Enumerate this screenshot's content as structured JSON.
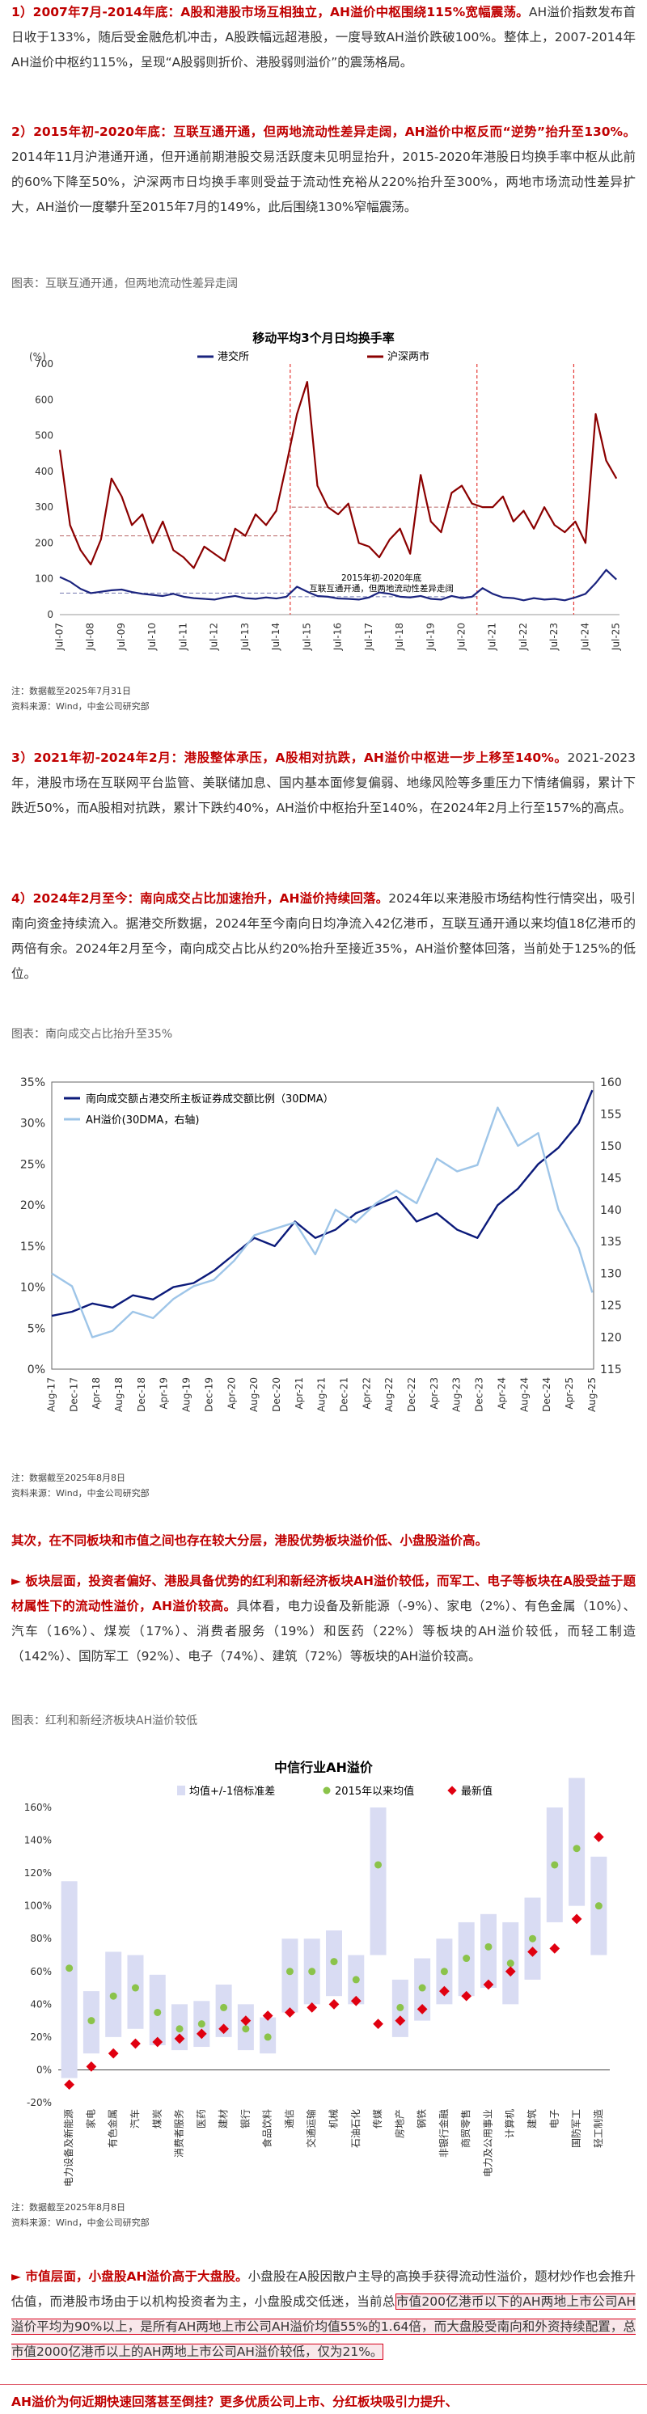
{
  "para1": {
    "title": "1）2007年7月-2014年底：A股和港股市场互相独立，AH溢价中枢围绕115%宽幅震荡。",
    "body": "AH溢价指数发布首日收于133%，随后受金融危机冲击，A股跌幅远超港股，一度导致AH溢价跌破100%。整体上，2007-2014年AH溢价中枢约115%，呈现“A股弱则折价、港股弱则溢价”的震荡格局。"
  },
  "para2": {
    "title": "2）2015年初-2020年底：互联互通开通，但两地流动性差异走阔，AH溢价中枢反而“逆势”抬升至130%。",
    "body": "2014年11月沪港通开通，但开通前期港股交易活跃度未见明显抬升，2015-2020年港股日均换手率中枢从此前的60%下降至50%，沪深两市日均换手率则受益于流动性充裕从220%抬升至300%，两地市场流动性差异扩大，AH溢价一度攀升至2015年7月的149%，此后围绕130%窄幅震荡。"
  },
  "cap1": "图表：互联互通开通，但两地流动性差异走阔",
  "chart1_src": [
    "注：数据截至2025年7月31日",
    "资料来源：Wind，中金公司研究部"
  ],
  "para3": {
    "title": "3）2021年初-2024年2月：港股整体承压，A股相对抗跌，AH溢价中枢进一步上移至140%。",
    "body": "2021-2023年，港股市场在互联网平台监管、美联储加息、国内基本面修复偏弱、地缘风险等多重压力下情绪偏弱，累计下跌近50%，而A股相对抗跌，累计下跌约40%，AH溢价中枢抬升至140%，在2024年2月上行至157%的高点。"
  },
  "para4": {
    "title": "4）2024年2月至今：南向成交占比加速抬升，AH溢价持续回落。",
    "body": "2024年以来港股市场结构性行情突出，吸引南向资金持续流入。据港交所数据，2024年至今南向日均净流入42亿港币，互联互通开通以来均值18亿港币的两倍有余。2024年2月至今，南向成交占比从约20%抬升至接近35%，AH溢价整体回落，当前处于125%的低位。"
  },
  "cap2": "图表：南向成交占比抬升至35%",
  "chart2_src": [
    "注：数据截至2025年8月8日",
    "资料来源：Wind，中金公司研究部"
  ],
  "para5": "其次，在不同板块和市值之间也存在较大分层，港股优势板块溢价低、小盘股溢价高。",
  "para6": {
    "title": "► 板块层面，投资者偏好、港股具备优势的红利和新经济板块AH溢价较低，而军工、电子等板块在A股受益于题材属性下的流动性溢价，AH溢价较高。",
    "body": "具体看，电力设备及新能源（-9%）、家电（2%）、有色金属（10%）、汽车（16%）、煤炭（17%）、消费者服务（19%）和医药（22%）等板块的AH溢价较低，而轻工制造（142%）、国防军工（92%）、电子（74%）、建筑（72%）等板块的AH溢价较高。"
  },
  "cap3": "图表：红利和新经济板块AH溢价较低",
  "chart3_src": [
    "注：数据截至2025年8月8日",
    "资料来源：Wind，中金公司研究部"
  ],
  "para7": {
    "title": "► 市值层面，小盘股AH溢价高于大盘股。",
    "body_a": "小盘股在A股因散户主导的高换手获得流动性溢价，题材炒作也会推升估值，而港股市场由于以机构投资者为主，小盘股成交低迷，当前总",
    "body_b": "市值200亿港币以下的AH两地上市公司AH溢价平均为90%以上，是所有AH两地上市公司AH溢价均值55%的1.64倍，而大盘股受南向和外资持续配置，总市值2000亿港币以上的AH两地上市公司AH溢价较低，仅为21%。"
  },
  "footer_text": "AH溢价为何近期快速回落甚至倒挂？更多优质公司上市、分红板块吸引力提升、",
  "chart_data": [
    {
      "type": "line",
      "title": "移动平均3个月日均换手率",
      "ylabel": "(%)",
      "ylim": [
        0,
        700
      ],
      "yticks": [
        "0",
        "100",
        "200",
        "300",
        "400",
        "500",
        "600",
        "700"
      ],
      "xticks": [
        "Jul-07",
        "Jul-08",
        "Jul-09",
        "Jul-10",
        "Jul-11",
        "Jul-12",
        "Jul-13",
        "Jul-14",
        "Jul-15",
        "Jul-16",
        "Jul-17",
        "Jul-18",
        "Jul-19",
        "Jul-20",
        "Jul-21",
        "Jul-22",
        "Jul-23",
        "Jul-24",
        "Jul-25"
      ],
      "annotation": "2015年初-2020年底\n互联互通开通，但两地流动性差异走阔",
      "series": [
        {
          "name": "港交所",
          "color": "#1a237e",
          "x": [
            2007.5,
            2007.83,
            2008.17,
            2008.5,
            2008.83,
            2009.17,
            2009.5,
            2009.83,
            2010.17,
            2010.5,
            2010.83,
            2011.17,
            2011.5,
            2011.83,
            2012.17,
            2012.5,
            2012.83,
            2013.17,
            2013.5,
            2013.83,
            2014.17,
            2014.5,
            2014.83,
            2015.17,
            2015.5,
            2015.83,
            2016.17,
            2016.5,
            2016.83,
            2017.17,
            2017.5,
            2017.83,
            2018.17,
            2018.5,
            2018.83,
            2019.17,
            2019.5,
            2019.83,
            2020.17,
            2020.5,
            2020.83,
            2021.17,
            2021.5,
            2021.83,
            2022.17,
            2022.5,
            2022.83,
            2023.17,
            2023.5,
            2023.83,
            2024.17,
            2024.5,
            2024.83,
            2025.17,
            2025.5
          ],
          "values": [
            105,
            92,
            72,
            60,
            64,
            68,
            70,
            63,
            58,
            55,
            52,
            58,
            50,
            46,
            44,
            42,
            48,
            52,
            46,
            44,
            48,
            45,
            50,
            78,
            64,
            52,
            50,
            45,
            44,
            42,
            48,
            62,
            58,
            50,
            48,
            52,
            44,
            42,
            52,
            46,
            50,
            74,
            58,
            48,
            46,
            40,
            46,
            42,
            44,
            40,
            48,
            58,
            88,
            125,
            98
          ]
        },
        {
          "name": "沪深两市",
          "color": "#8b0000",
          "x": [
            2007.5,
            2007.83,
            2008.17,
            2008.5,
            2008.83,
            2009.17,
            2009.5,
            2009.83,
            2010.17,
            2010.5,
            2010.83,
            2011.17,
            2011.5,
            2011.83,
            2012.17,
            2012.5,
            2012.83,
            2013.17,
            2013.5,
            2013.83,
            2014.17,
            2014.5,
            2014.83,
            2015.17,
            2015.5,
            2015.83,
            2016.17,
            2016.5,
            2016.83,
            2017.17,
            2017.5,
            2017.83,
            2018.17,
            2018.5,
            2018.83,
            2019.17,
            2019.5,
            2019.83,
            2020.17,
            2020.5,
            2020.83,
            2021.17,
            2021.5,
            2021.83,
            2022.17,
            2022.5,
            2022.83,
            2023.17,
            2023.5,
            2023.83,
            2024.17,
            2024.5,
            2024.83,
            2025.17,
            2025.5
          ],
          "values": [
            460,
            250,
            180,
            140,
            210,
            380,
            330,
            250,
            280,
            200,
            260,
            180,
            160,
            130,
            190,
            170,
            150,
            240,
            220,
            280,
            250,
            290,
            420,
            560,
            650,
            360,
            300,
            280,
            310,
            200,
            190,
            160,
            210,
            240,
            170,
            390,
            260,
            230,
            340,
            360,
            310,
            300,
            300,
            330,
            260,
            290,
            240,
            300,
            250,
            230,
            260,
            200,
            560,
            430,
            380
          ]
        }
      ],
      "reference_lines": [
        {
          "label": "港交所",
          "x_start": 2007.5,
          "x_end": 2014.95,
          "value": 60,
          "color": "#1a237e"
        },
        {
          "label": "港交所",
          "x_start": 2015.0,
          "x_end": 2020.99,
          "value": 50,
          "color": "#1a237e"
        },
        {
          "label": "沪深两市",
          "x_start": 2007.5,
          "x_end": 2014.95,
          "value": 220,
          "color": "#8b0000"
        },
        {
          "label": "沪深两市",
          "x_start": 2015.0,
          "x_end": 2020.99,
          "value": 300,
          "color": "#8b0000"
        }
      ],
      "vertical_markers": [
        2014.95,
        2020.99,
        2024.12
      ]
    },
    {
      "type": "line",
      "xticks": [
        "Aug-17",
        "Dec-17",
        "Apr-18",
        "Aug-18",
        "Dec-18",
        "Apr-19",
        "Aug-19",
        "Dec-19",
        "Apr-20",
        "Aug-20",
        "Dec-20",
        "Apr-21",
        "Aug-21",
        "Dec-21",
        "Apr-22",
        "Aug-22",
        "Dec-22",
        "Apr-23",
        "Aug-23",
        "Dec-23",
        "Apr-24",
        "Aug-24",
        "Dec-24",
        "Apr-25",
        "Aug-25"
      ],
      "ylim_left": [
        0,
        35
      ],
      "yticks_left": [
        "0%",
        "5%",
        "10%",
        "15%",
        "20%",
        "25%",
        "30%",
        "35%"
      ],
      "ylim_right": [
        115,
        160
      ],
      "yticks_right": [
        "115",
        "120",
        "125",
        "130",
        "135",
        "140",
        "145",
        "150",
        "155",
        "160"
      ],
      "series": [
        {
          "name": "南向成交额占港交所主板证券成交额比例（30DMA）",
          "color": "#0b1a7a",
          "axis": "left",
          "x": [
            2017.6,
            2017.9,
            2018.2,
            2018.5,
            2018.8,
            2019.1,
            2019.4,
            2019.7,
            2020.0,
            2020.3,
            2020.6,
            2020.9,
            2021.2,
            2021.5,
            2021.8,
            2022.1,
            2022.4,
            2022.7,
            2023.0,
            2023.3,
            2023.6,
            2023.9,
            2024.2,
            2024.5,
            2024.8,
            2025.1,
            2025.4,
            2025.6
          ],
          "values": [
            6.5,
            7.0,
            8.0,
            7.5,
            9.0,
            8.5,
            10.0,
            10.5,
            12.0,
            14.0,
            16.0,
            15.0,
            18.0,
            16.0,
            17.0,
            19.0,
            20.0,
            21.0,
            18.0,
            19.0,
            17.0,
            16.0,
            20.0,
            22.0,
            25.0,
            27.0,
            30.0,
            34.0
          ]
        },
        {
          "name": "AH溢价(30DMA，右轴)",
          "color": "#9ec5e8",
          "axis": "right",
          "x": [
            2017.6,
            2017.9,
            2018.2,
            2018.5,
            2018.8,
            2019.1,
            2019.4,
            2019.7,
            2020.0,
            2020.3,
            2020.6,
            2020.9,
            2021.2,
            2021.5,
            2021.8,
            2022.1,
            2022.4,
            2022.7,
            2023.0,
            2023.3,
            2023.6,
            2023.9,
            2024.2,
            2024.5,
            2024.8,
            2025.1,
            2025.4,
            2025.6
          ],
          "values": [
            130,
            128,
            120,
            121,
            124,
            123,
            126,
            128,
            129,
            132,
            136,
            137,
            138,
            133,
            140,
            138,
            141,
            143,
            141,
            148,
            146,
            147,
            156,
            150,
            152,
            140,
            134,
            127
          ]
        }
      ]
    },
    {
      "type": "scatter",
      "title": "中信行业AH溢价",
      "ylim": [
        -20,
        160
      ],
      "yticks": [
        "-20%",
        "0%",
        "20%",
        "40%",
        "60%",
        "80%",
        "100%",
        "120%",
        "140%",
        "160%"
      ],
      "legend": [
        "均值+/-1倍标准差",
        "2015年以来均值",
        "最新值"
      ],
      "categories": [
        "电力设备及新能源",
        "家电",
        "有色金属",
        "汽车",
        "煤炭",
        "消费者服务",
        "医药",
        "建材",
        "银行",
        "食品饮料",
        "通信",
        "交通运输",
        "机械",
        "石油石化",
        "传媒",
        "房地产",
        "钢铁",
        "非银行金融",
        "商贸零售",
        "电力及公用事业",
        "计算机",
        "建筑",
        "电子",
        "国防军工",
        "轻工制造"
      ],
      "latest": [
        -9,
        2,
        10,
        16,
        17,
        19,
        22,
        25,
        30,
        33,
        35,
        38,
        40,
        42,
        28,
        30,
        37,
        48,
        45,
        52,
        60,
        72,
        74,
        92,
        142
      ],
      "mean": [
        62,
        30,
        45,
        50,
        35,
        25,
        28,
        38,
        25,
        20,
        60,
        60,
        66,
        55,
        125,
        38,
        50,
        60,
        68,
        75,
        65,
        80,
        125,
        135,
        100
      ],
      "band_low": [
        -5,
        10,
        20,
        25,
        15,
        12,
        14,
        20,
        12,
        10,
        35,
        40,
        45,
        40,
        70,
        20,
        30,
        40,
        45,
        50,
        40,
        55,
        90,
        100,
        70
      ],
      "band_high": [
        115,
        48,
        72,
        70,
        58,
        40,
        42,
        52,
        40,
        32,
        80,
        80,
        85,
        70,
        160,
        55,
        68,
        80,
        90,
        95,
        90,
        105,
        160,
        178,
        130
      ]
    }
  ]
}
